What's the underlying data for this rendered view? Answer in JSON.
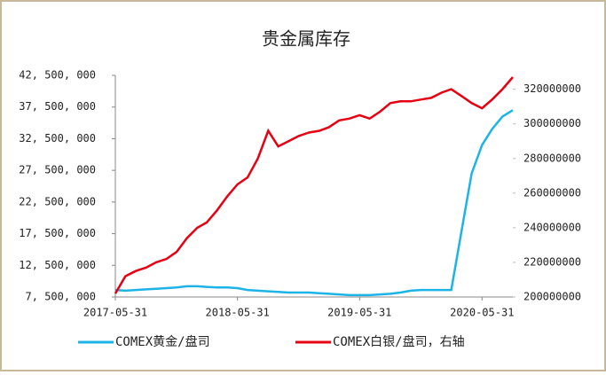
{
  "chart_data": {
    "type": "line",
    "title": "贵金属库存",
    "x": [
      "2017-05-31",
      "2017-06-30",
      "2017-07-31",
      "2017-08-31",
      "2017-09-30",
      "2017-10-31",
      "2017-11-30",
      "2017-12-31",
      "2018-01-31",
      "2018-02-28",
      "2018-03-31",
      "2018-04-30",
      "2018-05-31",
      "2018-06-30",
      "2018-07-31",
      "2018-08-31",
      "2018-09-30",
      "2018-10-31",
      "2018-11-30",
      "2018-12-31",
      "2019-01-31",
      "2019-02-28",
      "2019-03-31",
      "2019-04-30",
      "2019-05-31",
      "2019-06-30",
      "2019-07-31",
      "2019-08-31",
      "2019-09-30",
      "2019-10-31",
      "2019-11-30",
      "2019-12-31",
      "2020-01-31",
      "2020-02-29",
      "2020-03-31",
      "2020-04-30",
      "2020-05-31",
      "2020-06-30",
      "2020-07-31",
      "2020-08-31"
    ],
    "xlim": [
      "2017-05-31",
      "2020-08-31"
    ],
    "xticks": [
      "2017-05-31",
      "2018-05-31",
      "2019-05-31",
      "2020-05-31"
    ],
    "ylim": [
      7500000,
      42500000
    ],
    "yticks": [
      {
        "value": 7500000,
        "label": "7, 500, 000"
      },
      {
        "value": 12500000,
        "label": "12, 500, 000"
      },
      {
        "value": 17500000,
        "label": "17, 500, 000"
      },
      {
        "value": 22500000,
        "label": "22, 500, 000"
      },
      {
        "value": 27500000,
        "label": "27, 500, 000"
      },
      {
        "value": 32500000,
        "label": "32, 500, 000"
      },
      {
        "value": 37500000,
        "label": "37, 500, 000"
      },
      {
        "value": 42500000,
        "label": "42, 500, 000"
      }
    ],
    "y2lim": [
      200000000,
      328000000
    ],
    "y2ticks": [
      200000000,
      220000000,
      240000000,
      260000000,
      280000000,
      300000000,
      320000000
    ],
    "series": [
      {
        "name": "COMEX黄金/盘司",
        "color": "#1cb4e6",
        "values": [
          8600000,
          8500000,
          8600000,
          8700000,
          8800000,
          8900000,
          9000000,
          9200000,
          9200000,
          9100000,
          9000000,
          9000000,
          8900000,
          8600000,
          8500000,
          8400000,
          8300000,
          8200000,
          8200000,
          8200000,
          8100000,
          8000000,
          7900000,
          7800000,
          7800000,
          7800000,
          7900000,
          8000000,
          8200000,
          8500000,
          8600000,
          8600000,
          8600000,
          8600000,
          18000000,
          27000000,
          31500000,
          34000000,
          36000000,
          37000000
        ]
      },
      {
        "name": "COMEX白银/盘司，右轴",
        "color": "#e60012",
        "axis": "y2",
        "values": [
          202000000,
          212000000,
          215000000,
          217000000,
          220000000,
          222000000,
          226000000,
          234000000,
          240000000,
          243000000,
          250000000,
          258000000,
          265000000,
          269000000,
          280000000,
          296000000,
          287000000,
          290000000,
          293000000,
          295000000,
          296000000,
          298000000,
          302000000,
          303000000,
          305000000,
          303000000,
          307000000,
          312000000,
          313000000,
          313000000,
          314000000,
          315000000,
          318000000,
          320000000,
          316000000,
          312000000,
          309000000,
          314000000,
          320000000,
          327000000
        ]
      }
    ]
  }
}
